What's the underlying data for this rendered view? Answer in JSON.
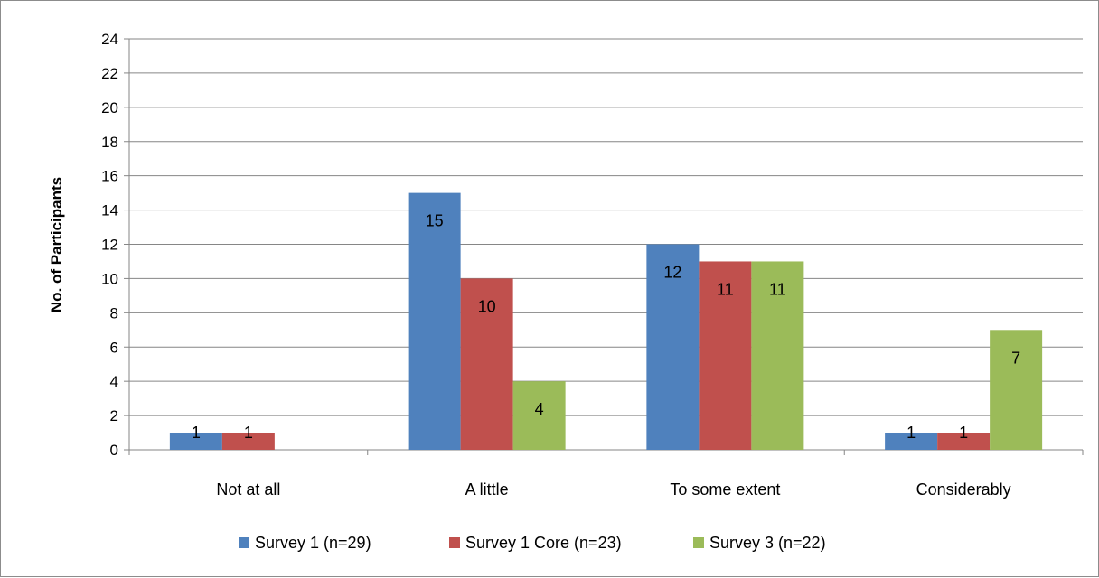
{
  "chart_data": {
    "type": "bar",
    "categories": [
      "Not at all",
      "A little",
      "To some extent",
      "Considerably"
    ],
    "series": [
      {
        "name": "Survey 1 (n=29)",
        "color": "#4f81bd",
        "values": [
          1,
          15,
          12,
          1
        ]
      },
      {
        "name": "Survey 1 Core (n=23)",
        "color": "#c0504d",
        "values": [
          1,
          10,
          11,
          1
        ]
      },
      {
        "name": "Survey 3 (n=22)",
        "color": "#9bbb59",
        "values": [
          null,
          4,
          11,
          7
        ]
      }
    ],
    "title": "",
    "xlabel": "",
    "ylabel": "No. of Participants",
    "ylim": [
      0,
      24
    ],
    "yticks": [
      0,
      2,
      4,
      6,
      8,
      10,
      12,
      14,
      16,
      18,
      20,
      22,
      24
    ],
    "grid": true,
    "legend_position": "bottom",
    "data_labels": true
  }
}
